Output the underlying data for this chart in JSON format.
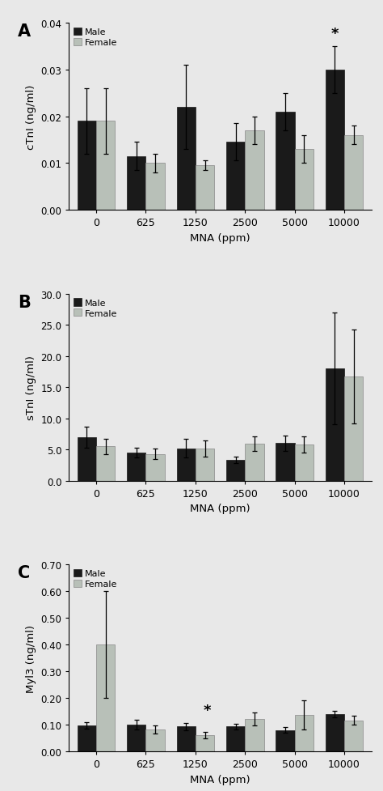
{
  "categories": [
    "0",
    "625",
    "1250",
    "2500",
    "5000",
    "10000"
  ],
  "panel_A": {
    "label": "A",
    "ylabel": "cTnI (ng/ml)",
    "xlabel": "MNA (ppm)",
    "ylim": [
      0,
      0.04
    ],
    "yticks": [
      0.0,
      0.01,
      0.02,
      0.03,
      0.04
    ],
    "yticklabels": [
      "0.00",
      "0.01",
      "0.02",
      "0.03",
      "0.04"
    ],
    "male_values": [
      0.019,
      0.0115,
      0.022,
      0.0145,
      0.021,
      0.03
    ],
    "female_values": [
      0.019,
      0.01,
      0.0095,
      0.017,
      0.013,
      0.016
    ],
    "male_errors": [
      0.007,
      0.003,
      0.009,
      0.004,
      0.004,
      0.005
    ],
    "female_errors": [
      0.007,
      0.002,
      0.001,
      0.003,
      0.003,
      0.002
    ],
    "star_pos": [
      5
    ],
    "star_on_male": true
  },
  "panel_B": {
    "label": "B",
    "ylabel": "sTnI (ng/ml)",
    "xlabel": "MNA (ppm)",
    "ylim": [
      0,
      30.0
    ],
    "yticks": [
      0.0,
      5.0,
      10.0,
      15.0,
      20.0,
      25.0,
      30.0
    ],
    "yticklabels": [
      "0.0",
      "5.0",
      "10.0",
      "15.0",
      "20.0",
      "25.0",
      "30.0"
    ],
    "male_values": [
      7.0,
      4.5,
      5.2,
      3.3,
      6.0,
      18.0
    ],
    "female_values": [
      5.5,
      4.3,
      5.1,
      5.9,
      5.8,
      16.7
    ],
    "male_errors": [
      1.7,
      0.8,
      1.5,
      0.5,
      1.2,
      9.0
    ],
    "female_errors": [
      1.2,
      0.8,
      1.3,
      1.2,
      1.3,
      7.5
    ],
    "star_pos": [],
    "star_on_male": true
  },
  "panel_C": {
    "label": "C",
    "ylabel": "Myl3 (ng/ml)",
    "xlabel": "MNA (ppm)",
    "ylim": [
      0,
      0.7
    ],
    "yticks": [
      0.0,
      0.1,
      0.2,
      0.3,
      0.4,
      0.5,
      0.6,
      0.7
    ],
    "yticklabels": [
      "0.00",
      "0.10",
      "0.20",
      "0.30",
      "0.40",
      "0.50",
      "0.60",
      "0.70"
    ],
    "male_values": [
      0.097,
      0.1,
      0.093,
      0.093,
      0.08,
      0.14
    ],
    "female_values": [
      0.4,
      0.082,
      0.06,
      0.122,
      0.137,
      0.117
    ],
    "male_errors": [
      0.013,
      0.018,
      0.015,
      0.01,
      0.01,
      0.012
    ],
    "female_errors": [
      0.2,
      0.015,
      0.012,
      0.025,
      0.055,
      0.018
    ],
    "star_pos": [
      2
    ],
    "star_on_male": false
  },
  "male_color": "#1a1a1a",
  "female_color": "#b8c0b8",
  "bar_width": 0.38,
  "legend_male": "Male",
  "legend_female": "Female",
  "figure_bg": "#e8e8e8",
  "axes_bg": "#e8e8e8"
}
